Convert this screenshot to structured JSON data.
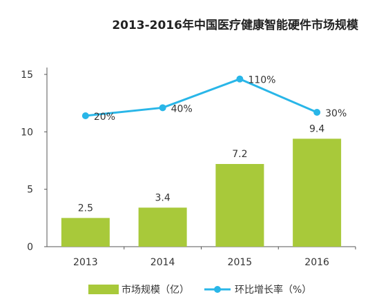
{
  "chart_data": {
    "type": "bar",
    "title": "2013-2016年中国医疗健康智能硬件市场规模",
    "categories": [
      "2013",
      "2014",
      "2015",
      "2016"
    ],
    "series": [
      {
        "name": "市场规模（亿）",
        "type": "bar",
        "values": [
          2.5,
          3.4,
          7.2,
          9.4
        ],
        "labels": [
          "2.5",
          "3.4",
          "7.2",
          "9.4"
        ],
        "color": "#a8c93a"
      },
      {
        "name": "环比增长率（%）",
        "type": "line",
        "values": [
          11.4,
          12.1,
          14.6,
          11.7
        ],
        "labels": [
          "20%",
          "40%",
          "110%",
          "30%"
        ],
        "color": "#29b6e8"
      }
    ],
    "ylim": [
      0,
      15
    ],
    "yticks": [
      "0",
      "5",
      "10",
      "15"
    ],
    "grid": false,
    "legend": "bottom"
  }
}
